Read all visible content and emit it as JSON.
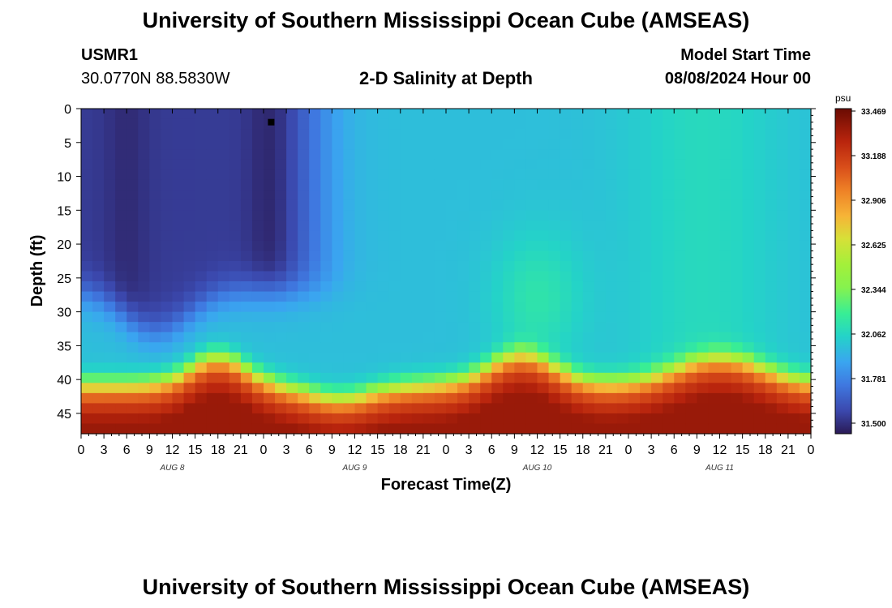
{
  "page": {
    "title": "University of Southern Mississippi Ocean Cube (AMSEAS)",
    "footer_title": "University of Southern Mississippi Ocean Cube (AMSEAS)"
  },
  "station": {
    "id": "USMR1",
    "coords": "30.0770N  88.5830W"
  },
  "model_start": {
    "label": "Model Start Time",
    "value": "08/08/2024 Hour 00"
  },
  "chart_data": {
    "type": "heatmap",
    "title": "2-D Salinity at Depth",
    "xlabel": "Forecast Time(Z)",
    "ylabel": "Depth (ft)",
    "x_range_hours": [
      0,
      96
    ],
    "x_ticks": [
      "0",
      "3",
      "6",
      "9",
      "12",
      "15",
      "18",
      "21",
      "0",
      "3",
      "6",
      "9",
      "12",
      "15",
      "18",
      "21",
      "0",
      "3",
      "6",
      "9",
      "12",
      "15",
      "18",
      "21",
      "0",
      "3",
      "6",
      "9",
      "12",
      "15",
      "18",
      "21",
      "0"
    ],
    "day_labels": [
      {
        "label": "AUG 8",
        "hour": 12
      },
      {
        "label": "AUG 9",
        "hour": 36
      },
      {
        "label": "AUG 10",
        "hour": 60
      },
      {
        "label": "AUG 11",
        "hour": 84
      }
    ],
    "ylim": [
      0,
      48
    ],
    "y_ticks": [
      0,
      5,
      10,
      15,
      20,
      25,
      30,
      35,
      40,
      45
    ],
    "colorbar": {
      "unit": "psu",
      "min": 31.5,
      "max": 33.469,
      "ticks": [
        "33.469",
        "33.188",
        "32.906",
        "32.625",
        "32.344",
        "32.062",
        "31.781",
        "31.500"
      ]
    },
    "marker": {
      "hour": 25,
      "depth_ft": 2
    },
    "field_summary": [
      {
        "hours": "0-30",
        "depth_ft": "0-33",
        "salinity_psu": 31.5,
        "note": "low-salinity fresh layer, darkest near hour 25"
      },
      {
        "hours": "30-96",
        "depth_ft": "0-33",
        "salinity_psu": 32.05,
        "note": "mid salinity, slightly higher near hour 60 and hours 72-90"
      },
      {
        "hours": "0-96",
        "depth_ft": "37-48",
        "salinity_psu": 33.3,
        "note": "high-salinity bottom layer, interface shallowest near hours 18, 57 and 84"
      }
    ]
  }
}
